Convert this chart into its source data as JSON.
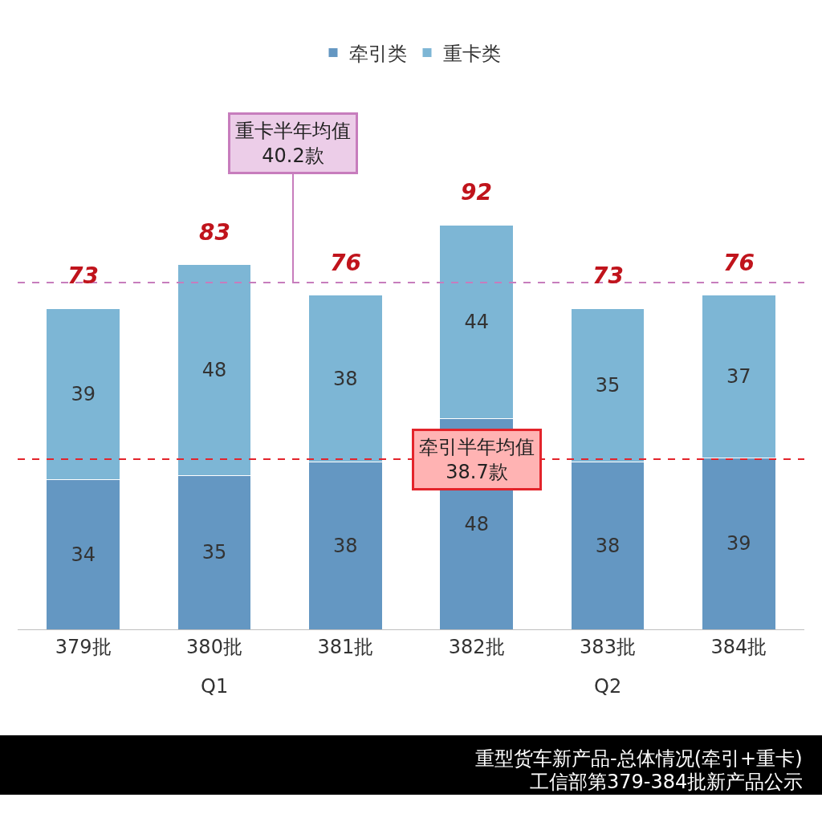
{
  "chart_data": {
    "type": "bar",
    "stacked": true,
    "categories": [
      "379批",
      "380批",
      "381批",
      "382批",
      "383批",
      "384批"
    ],
    "series": [
      {
        "name": "牵引类",
        "color": "#6497c2",
        "values": [
          34,
          35,
          38,
          48,
          38,
          39
        ]
      },
      {
        "name": "重卡类",
        "color": "#7db6d5",
        "values": [
          39,
          48,
          38,
          44,
          35,
          37
        ]
      }
    ],
    "data_labels": true,
    "totals": [
      "73",
      "83",
      "76",
      "92",
      "73",
      "76"
    ],
    "tick_labels": "x",
    "legend": "top",
    "ref_lines": [
      {
        "axis": "y",
        "value": 38.7,
        "label": "牵引半年均值\n38.7款",
        "color": "#e3242b",
        "line_style": "dashed"
      },
      {
        "axis": "y",
        "value": 78.9,
        "label": "重卡半年均值\n40.2款",
        "color": "#c77dbd",
        "line_style": "dashed"
      }
    ],
    "annotations": [
      "Q1",
      "Q2",
      "重型货车新产品-总体情况(牵引+重卡)",
      "工信部第379-384批新产品公示"
    ]
  }
}
